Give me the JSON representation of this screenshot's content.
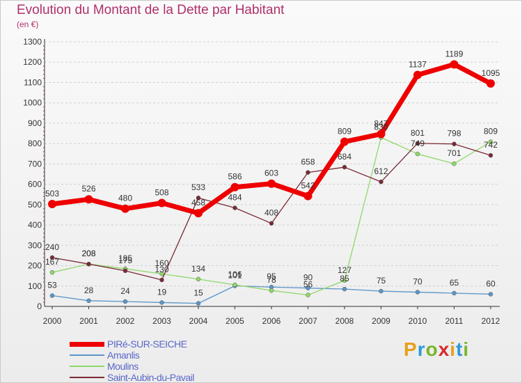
{
  "header": {
    "title": "Evolution du Montant de la Dette par Habitant",
    "subtitle": "(en €)"
  },
  "brand": {
    "letters": [
      "P",
      "r",
      "o",
      "x",
      "i",
      "t",
      "i"
    ],
    "colors": [
      "#e8a01c",
      "#2e9ad6",
      "#7ab62a",
      "#d62a2a",
      "#e8a01c",
      "#2e9ad6",
      "#7ab62a"
    ]
  },
  "chart_data": {
    "type": "line",
    "title": "Evolution du Montant de la Dette par Habitant",
    "ylabel": "(en €)",
    "xlabel": "",
    "x": [
      "2000",
      "2001",
      "2002",
      "2003",
      "2004",
      "2005",
      "2006",
      "2007",
      "2008",
      "2009",
      "2010",
      "2011",
      "2012"
    ],
    "ylim": [
      0,
      1300
    ],
    "yticks": [
      "0",
      "100",
      "200",
      "300",
      "400",
      "500",
      "600",
      "700",
      "800",
      "900",
      "1000",
      "1100",
      "1200",
      "1300"
    ],
    "grid": "horizontal dashed",
    "legend": "bottom-left",
    "series": [
      {
        "name": "PIRé-SUR-SEICHE",
        "color": "#ee0000",
        "values": [
          503,
          526,
          480,
          508,
          458,
          586,
          603,
          542,
          809,
          847,
          1137,
          1189,
          1095
        ]
      },
      {
        "name": "Amanlis",
        "color": "#5b95c8",
        "values": [
          53,
          28,
          24,
          19,
          15,
          101,
          95,
          90,
          85,
          75,
          70,
          65,
          60
        ]
      },
      {
        "name": "Moulins",
        "color": "#8fd86a",
        "values": [
          167,
          208,
          185,
          160,
          134,
          106,
          78,
          56,
          127,
          830,
          749,
          701,
          809
        ]
      },
      {
        "name": "Saint-Aubin-du-Pavail",
        "color": "#7a2a36",
        "values": [
          240,
          208,
          175,
          130,
          533,
          484,
          408,
          658,
          684,
          612,
          801,
          798,
          742
        ]
      }
    ]
  }
}
